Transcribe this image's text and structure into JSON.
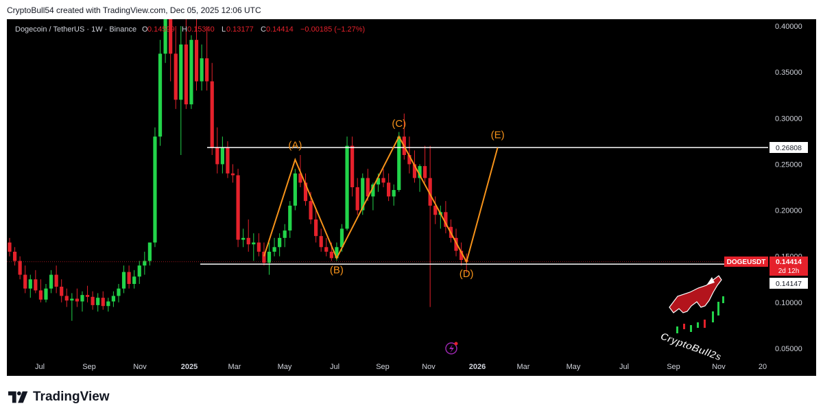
{
  "header": {
    "text": "CryptoBull54 created with TradingView.com, Dec 05, 2025 12:06 UTC"
  },
  "footer": {
    "brand": "TradingView"
  },
  "legend": {
    "symbol": "Dogecoin / TetherUS · 1W · Binance",
    "o_label": "O",
    "o_value": "0.14599",
    "h_label": "H",
    "h_value": "0.15340",
    "l_label": "L",
    "l_value": "0.13177",
    "c_label": "C",
    "c_value": "0.14414",
    "change": "−0.00185 (−1.27%)"
  },
  "colors": {
    "up": "#22d44a",
    "down": "#e5212b",
    "wave": "#f7931a",
    "line": "#ffffff",
    "badge": "#e5212b",
    "price_line": "#e5212b"
  },
  "watermark": {
    "text": "CryptoBull2s"
  },
  "price_badge": {
    "symbol": "DOGEUSDT",
    "value": "0.14414",
    "countdown": "2d 12h"
  },
  "lines_labels": {
    "resistance": "0.26808",
    "support": "0.14147"
  },
  "chart_data": {
    "type": "candlestick",
    "interval": "1W",
    "ylim": [
      0.03,
      0.41
    ],
    "y_ticks": [
      "0.40000",
      "0.35000",
      "0.30000",
      "0.25000",
      "0.20000",
      "0.15000",
      "0.10000",
      "0.05000"
    ],
    "y_tick_values": [
      0.4,
      0.35,
      0.3,
      0.25,
      0.2,
      0.15,
      0.1,
      0.05
    ],
    "x_labels": [
      "Jul",
      "Sep",
      "Nov",
      "2025",
      "Mar",
      "May",
      "Jul",
      "Sep",
      "Nov",
      "2026",
      "Mar",
      "May",
      "Jul",
      "Sep",
      "Nov",
      "20"
    ],
    "candles": [
      {
        "o": 0.165,
        "h": 0.17,
        "l": 0.15,
        "c": 0.155
      },
      {
        "o": 0.155,
        "h": 0.16,
        "l": 0.14,
        "c": 0.145
      },
      {
        "o": 0.145,
        "h": 0.15,
        "l": 0.125,
        "c": 0.13
      },
      {
        "o": 0.13,
        "h": 0.14,
        "l": 0.11,
        "c": 0.115
      },
      {
        "o": 0.115,
        "h": 0.13,
        "l": 0.105,
        "c": 0.125
      },
      {
        "o": 0.125,
        "h": 0.135,
        "l": 0.11,
        "c": 0.113
      },
      {
        "o": 0.113,
        "h": 0.125,
        "l": 0.1,
        "c": 0.103
      },
      {
        "o": 0.103,
        "h": 0.12,
        "l": 0.1,
        "c": 0.115
      },
      {
        "o": 0.115,
        "h": 0.135,
        "l": 0.11,
        "c": 0.13
      },
      {
        "o": 0.13,
        "h": 0.14,
        "l": 0.11,
        "c": 0.117
      },
      {
        "o": 0.117,
        "h": 0.125,
        "l": 0.1,
        "c": 0.107
      },
      {
        "o": 0.107,
        "h": 0.115,
        "l": 0.095,
        "c": 0.102
      },
      {
        "o": 0.102,
        "h": 0.11,
        "l": 0.08,
        "c": 0.104
      },
      {
        "o": 0.104,
        "h": 0.115,
        "l": 0.095,
        "c": 0.101
      },
      {
        "o": 0.101,
        "h": 0.112,
        "l": 0.09,
        "c": 0.108
      },
      {
        "o": 0.108,
        "h": 0.118,
        "l": 0.1,
        "c": 0.106
      },
      {
        "o": 0.106,
        "h": 0.112,
        "l": 0.092,
        "c": 0.097
      },
      {
        "o": 0.097,
        "h": 0.11,
        "l": 0.09,
        "c": 0.105
      },
      {
        "o": 0.105,
        "h": 0.112,
        "l": 0.092,
        "c": 0.096
      },
      {
        "o": 0.096,
        "h": 0.105,
        "l": 0.09,
        "c": 0.101
      },
      {
        "o": 0.101,
        "h": 0.112,
        "l": 0.095,
        "c": 0.107
      },
      {
        "o": 0.107,
        "h": 0.12,
        "l": 0.1,
        "c": 0.115
      },
      {
        "o": 0.115,
        "h": 0.14,
        "l": 0.11,
        "c": 0.133
      },
      {
        "o": 0.133,
        "h": 0.14,
        "l": 0.115,
        "c": 0.12
      },
      {
        "o": 0.12,
        "h": 0.135,
        "l": 0.115,
        "c": 0.128
      },
      {
        "o": 0.128,
        "h": 0.145,
        "l": 0.12,
        "c": 0.14
      },
      {
        "o": 0.14,
        "h": 0.155,
        "l": 0.13,
        "c": 0.145
      },
      {
        "o": 0.145,
        "h": 0.165,
        "l": 0.14,
        "c": 0.165
      },
      {
        "o": 0.165,
        "h": 0.29,
        "l": 0.16,
        "c": 0.28
      },
      {
        "o": 0.28,
        "h": 0.385,
        "l": 0.27,
        "c": 0.37
      },
      {
        "o": 0.37,
        "h": 0.48,
        "l": 0.36,
        "c": 0.41
      },
      {
        "o": 0.41,
        "h": 0.43,
        "l": 0.34,
        "c": 0.37
      },
      {
        "o": 0.37,
        "h": 0.4,
        "l": 0.31,
        "c": 0.32
      },
      {
        "o": 0.32,
        "h": 0.4,
        "l": 0.26,
        "c": 0.38
      },
      {
        "o": 0.38,
        "h": 0.42,
        "l": 0.31,
        "c": 0.315
      },
      {
        "o": 0.315,
        "h": 0.39,
        "l": 0.31,
        "c": 0.385
      },
      {
        "o": 0.385,
        "h": 0.42,
        "l": 0.33,
        "c": 0.34
      },
      {
        "o": 0.34,
        "h": 0.38,
        "l": 0.33,
        "c": 0.365
      },
      {
        "o": 0.365,
        "h": 0.4,
        "l": 0.33,
        "c": 0.34
      },
      {
        "o": 0.34,
        "h": 0.36,
        "l": 0.26,
        "c": 0.268
      },
      {
        "o": 0.268,
        "h": 0.29,
        "l": 0.24,
        "c": 0.25
      },
      {
        "o": 0.25,
        "h": 0.28,
        "l": 0.24,
        "c": 0.268
      },
      {
        "o": 0.268,
        "h": 0.275,
        "l": 0.235,
        "c": 0.24
      },
      {
        "o": 0.24,
        "h": 0.25,
        "l": 0.23,
        "c": 0.238
      },
      {
        "o": 0.238,
        "h": 0.245,
        "l": 0.16,
        "c": 0.168
      },
      {
        "o": 0.168,
        "h": 0.18,
        "l": 0.16,
        "c": 0.17
      },
      {
        "o": 0.17,
        "h": 0.19,
        "l": 0.155,
        "c": 0.163
      },
      {
        "o": 0.163,
        "h": 0.175,
        "l": 0.145,
        "c": 0.165
      },
      {
        "o": 0.165,
        "h": 0.175,
        "l": 0.15,
        "c": 0.155
      },
      {
        "o": 0.155,
        "h": 0.165,
        "l": 0.14,
        "c": 0.143
      },
      {
        "o": 0.143,
        "h": 0.165,
        "l": 0.13,
        "c": 0.155
      },
      {
        "o": 0.155,
        "h": 0.17,
        "l": 0.15,
        "c": 0.16
      },
      {
        "o": 0.16,
        "h": 0.175,
        "l": 0.15,
        "c": 0.17
      },
      {
        "o": 0.17,
        "h": 0.185,
        "l": 0.16,
        "c": 0.178
      },
      {
        "o": 0.178,
        "h": 0.21,
        "l": 0.17,
        "c": 0.205
      },
      {
        "o": 0.205,
        "h": 0.245,
        "l": 0.2,
        "c": 0.24
      },
      {
        "o": 0.24,
        "h": 0.26,
        "l": 0.225,
        "c": 0.23
      },
      {
        "o": 0.23,
        "h": 0.24,
        "l": 0.205,
        "c": 0.21
      },
      {
        "o": 0.21,
        "h": 0.22,
        "l": 0.185,
        "c": 0.19
      },
      {
        "o": 0.19,
        "h": 0.2,
        "l": 0.165,
        "c": 0.172
      },
      {
        "o": 0.172,
        "h": 0.18,
        "l": 0.155,
        "c": 0.16
      },
      {
        "o": 0.16,
        "h": 0.17,
        "l": 0.15,
        "c": 0.155
      },
      {
        "o": 0.155,
        "h": 0.165,
        "l": 0.145,
        "c": 0.148
      },
      {
        "o": 0.148,
        "h": 0.165,
        "l": 0.145,
        "c": 0.16
      },
      {
        "o": 0.16,
        "h": 0.185,
        "l": 0.155,
        "c": 0.18
      },
      {
        "o": 0.18,
        "h": 0.28,
        "l": 0.178,
        "c": 0.27
      },
      {
        "o": 0.27,
        "h": 0.28,
        "l": 0.215,
        "c": 0.225
      },
      {
        "o": 0.225,
        "h": 0.235,
        "l": 0.195,
        "c": 0.2
      },
      {
        "o": 0.2,
        "h": 0.24,
        "l": 0.195,
        "c": 0.235
      },
      {
        "o": 0.235,
        "h": 0.245,
        "l": 0.21,
        "c": 0.215
      },
      {
        "o": 0.215,
        "h": 0.23,
        "l": 0.2,
        "c": 0.228
      },
      {
        "o": 0.228,
        "h": 0.24,
        "l": 0.22,
        "c": 0.235
      },
      {
        "o": 0.235,
        "h": 0.245,
        "l": 0.225,
        "c": 0.23
      },
      {
        "o": 0.23,
        "h": 0.24,
        "l": 0.21,
        "c": 0.215
      },
      {
        "o": 0.215,
        "h": 0.228,
        "l": 0.205,
        "c": 0.222
      },
      {
        "o": 0.222,
        "h": 0.285,
        "l": 0.22,
        "c": 0.28
      },
      {
        "o": 0.28,
        "h": 0.305,
        "l": 0.255,
        "c": 0.26
      },
      {
        "o": 0.26,
        "h": 0.28,
        "l": 0.24,
        "c": 0.25
      },
      {
        "o": 0.25,
        "h": 0.265,
        "l": 0.23,
        "c": 0.235
      },
      {
        "o": 0.235,
        "h": 0.25,
        "l": 0.22,
        "c": 0.248
      },
      {
        "o": 0.248,
        "h": 0.27,
        "l": 0.23,
        "c": 0.235
      },
      {
        "o": 0.235,
        "h": 0.27,
        "l": 0.095,
        "c": 0.205
      },
      {
        "o": 0.205,
        "h": 0.215,
        "l": 0.185,
        "c": 0.195
      },
      {
        "o": 0.195,
        "h": 0.205,
        "l": 0.18,
        "c": 0.198
      },
      {
        "o": 0.198,
        "h": 0.21,
        "l": 0.175,
        "c": 0.182
      },
      {
        "o": 0.182,
        "h": 0.19,
        "l": 0.165,
        "c": 0.17
      },
      {
        "o": 0.17,
        "h": 0.18,
        "l": 0.15,
        "c": 0.156
      },
      {
        "o": 0.156,
        "h": 0.165,
        "l": 0.14,
        "c": 0.146
      },
      {
        "o": 0.146,
        "h": 0.153,
        "l": 0.132,
        "c": 0.144
      }
    ],
    "start_index_offset": 0,
    "resistance_value": 0.26808,
    "support_value": 0.14147,
    "last_price": 0.14414,
    "wave_points": [
      {
        "label": "(A)",
        "i": 55,
        "v": 0.255
      },
      {
        "label": "(B)",
        "i": 63,
        "v": 0.148
      },
      {
        "label": "(C)",
        "i": 75,
        "v": 0.28
      },
      {
        "label": "(D)",
        "i": 88,
        "v": 0.144
      },
      {
        "label": "(E)",
        "i": 94,
        "v": 0.268
      }
    ],
    "wave_start": {
      "i": 49,
      "v": 0.15
    }
  }
}
